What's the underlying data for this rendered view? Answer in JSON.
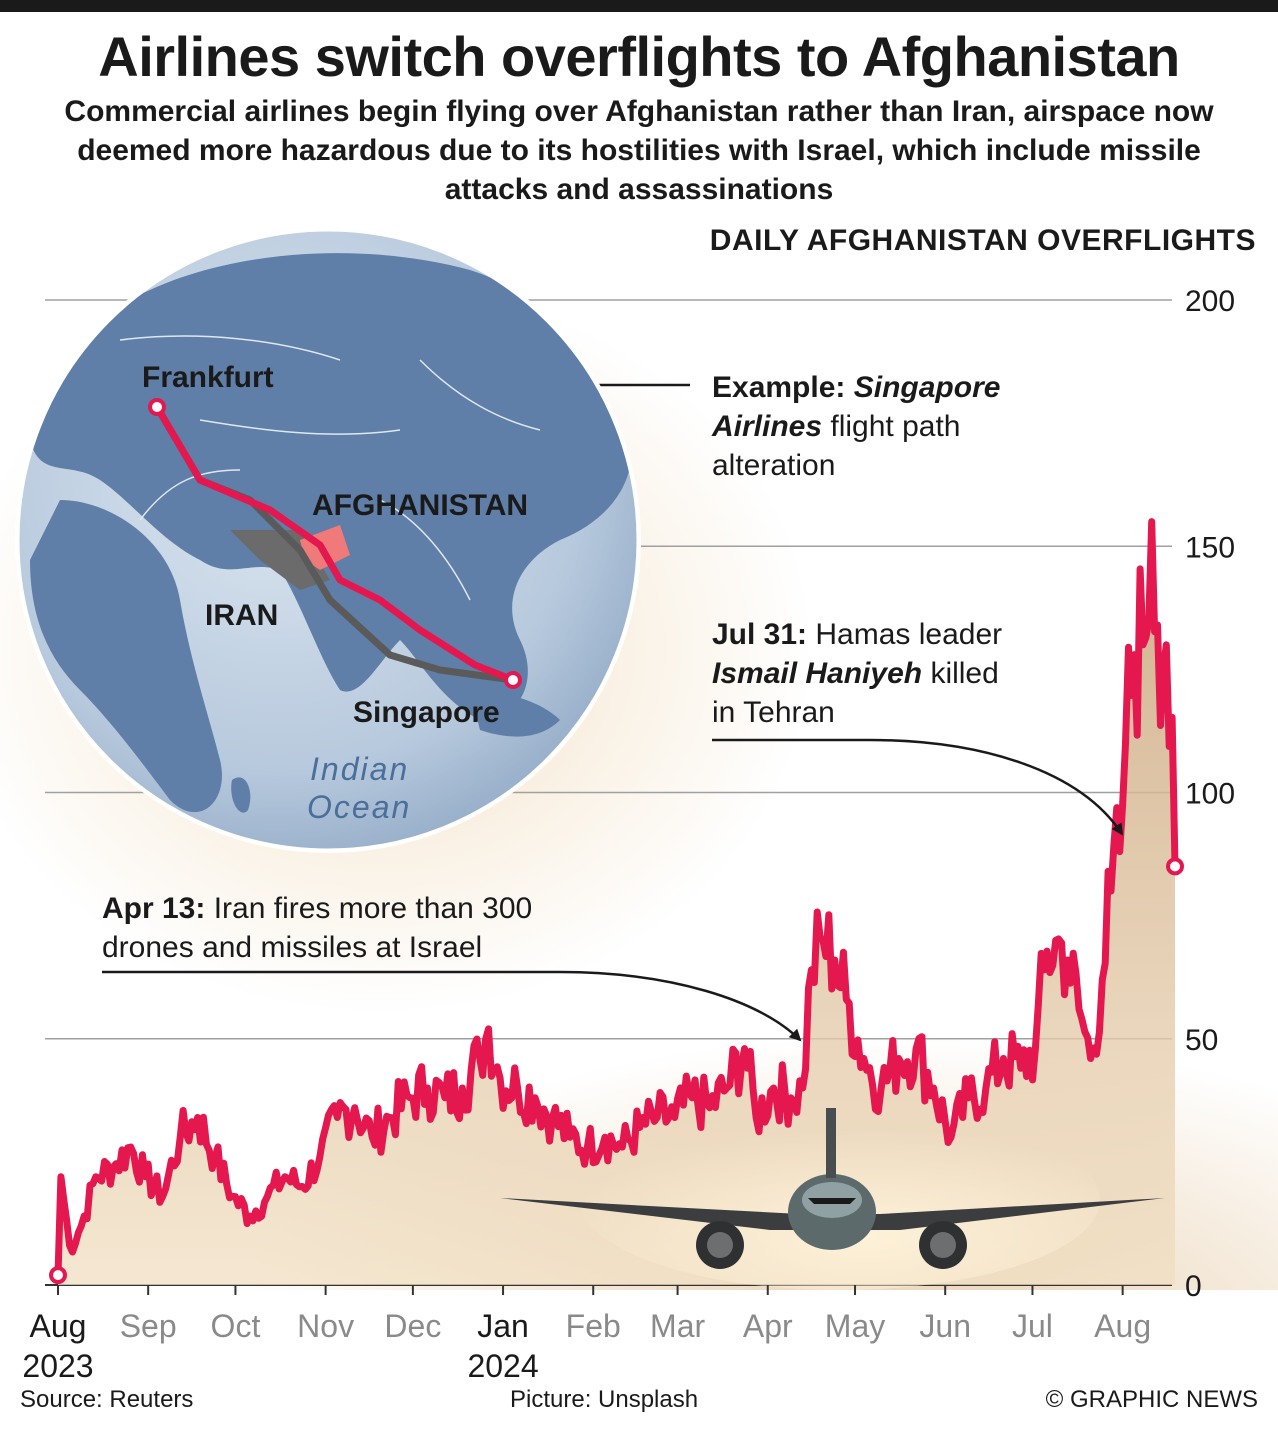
{
  "header": {
    "title": "Airlines switch overflights to Afghanistan",
    "subtitle": "Commercial airlines begin flying over Afghanistan rather than Iran, airspace now deemed more hazardous due to its hostilities with Israel, which include missile attacks and assassinations"
  },
  "map": {
    "city_start": "Frankfurt",
    "city_end": "Singapore",
    "country_new": "AFGHANISTAN",
    "country_old": "IRAN",
    "ocean_line1": "Indian",
    "ocean_line2": "Ocean",
    "colors": {
      "new_route": "#e4174f",
      "old_route": "#5a5a5a",
      "afghanistan": "#f07a7a",
      "iran": "#6b6b6b",
      "ocean": "#b9cbe0",
      "land": "#5f7ea8"
    }
  },
  "annotations": {
    "example_lead": "Example:",
    "example_airline_1": "Singapore",
    "example_airline_2": "Airlines",
    "example_rest_1": "flight path",
    "example_rest_2": "alteration",
    "jul_date": "Jul 31:",
    "jul_text_1": "Hamas leader",
    "jul_name": "Ismail Haniyeh",
    "jul_text_2": "killed",
    "jul_text_3": "in Tehran",
    "apr_date": "Apr 13:",
    "apr_text_1": "Iran fires more than 300",
    "apr_text_2": "drones and missiles at Israel"
  },
  "chart_data": {
    "type": "line",
    "title": "DAILY AFGHANISTAN OVERFLIGHTS",
    "ylim": [
      0,
      200
    ],
    "yticks": [
      "200",
      "150",
      "100",
      "50",
      "0"
    ],
    "xticks": [
      {
        "label": "Aug",
        "year": "2023",
        "highlight": true
      },
      {
        "label": "Sep",
        "year": "",
        "highlight": false
      },
      {
        "label": "Oct",
        "year": "",
        "highlight": false
      },
      {
        "label": "Nov",
        "year": "",
        "highlight": false
      },
      {
        "label": "Dec",
        "year": "",
        "highlight": false
      },
      {
        "label": "Jan",
        "year": "2024",
        "highlight": true
      },
      {
        "label": "Feb",
        "year": "",
        "highlight": false
      },
      {
        "label": "Mar",
        "year": "",
        "highlight": false
      },
      {
        "label": "Apr",
        "year": "",
        "highlight": false
      },
      {
        "label": "May",
        "year": "",
        "highlight": false
      },
      {
        "label": "Jun",
        "year": "",
        "highlight": false
      },
      {
        "label": "Jul",
        "year": "",
        "highlight": false
      },
      {
        "label": "Aug",
        "year": "",
        "highlight": false
      }
    ],
    "x_start": "2023-08-01",
    "x_end": "2024-08-19",
    "series": [
      {
        "color": "#e4174f",
        "anchors": [
          [
            "2023-08-01",
            2
          ],
          [
            "2023-08-02",
            22
          ],
          [
            "2023-08-05",
            8
          ],
          [
            "2023-08-09",
            12
          ],
          [
            "2023-08-14",
            22
          ],
          [
            "2023-08-20",
            24
          ],
          [
            "2023-08-26",
            28
          ],
          [
            "2023-08-31",
            22
          ],
          [
            "2023-09-06",
            18
          ],
          [
            "2023-09-12",
            30
          ],
          [
            "2023-09-18",
            34
          ],
          [
            "2023-09-24",
            26
          ],
          [
            "2023-09-30",
            18
          ],
          [
            "2023-10-06",
            14
          ],
          [
            "2023-10-12",
            18
          ],
          [
            "2023-10-18",
            22
          ],
          [
            "2023-10-24",
            20
          ],
          [
            "2023-10-30",
            26
          ],
          [
            "2023-11-05",
            34
          ],
          [
            "2023-11-11",
            36
          ],
          [
            "2023-11-17",
            30
          ],
          [
            "2023-11-23",
            34
          ],
          [
            "2023-11-30",
            38
          ],
          [
            "2023-12-06",
            40
          ],
          [
            "2023-12-12",
            38
          ],
          [
            "2023-12-18",
            40
          ],
          [
            "2023-12-24",
            46
          ],
          [
            "2023-12-27",
            52
          ],
          [
            "2023-12-31",
            42
          ],
          [
            "2024-01-06",
            40
          ],
          [
            "2024-01-12",
            38
          ],
          [
            "2024-01-18",
            34
          ],
          [
            "2024-01-24",
            30
          ],
          [
            "2024-01-30",
            28
          ],
          [
            "2024-02-05",
            30
          ],
          [
            "2024-02-11",
            28
          ],
          [
            "2024-02-17",
            32
          ],
          [
            "2024-02-23",
            34
          ],
          [
            "2024-02-29",
            34
          ],
          [
            "2024-03-06",
            38
          ],
          [
            "2024-03-12",
            36
          ],
          [
            "2024-03-18",
            40
          ],
          [
            "2024-03-24",
            48
          ],
          [
            "2024-03-28",
            34
          ],
          [
            "2024-04-03",
            40
          ],
          [
            "2024-04-09",
            38
          ],
          [
            "2024-04-13",
            40
          ],
          [
            "2024-04-16",
            64
          ],
          [
            "2024-04-20",
            70
          ],
          [
            "2024-04-24",
            66
          ],
          [
            "2024-04-28",
            58
          ],
          [
            "2024-05-04",
            46
          ],
          [
            "2024-05-10",
            40
          ],
          [
            "2024-05-16",
            46
          ],
          [
            "2024-05-22",
            48
          ],
          [
            "2024-05-28",
            40
          ],
          [
            "2024-06-03",
            30
          ],
          [
            "2024-06-09",
            38
          ],
          [
            "2024-06-15",
            40
          ],
          [
            "2024-06-21",
            46
          ],
          [
            "2024-06-27",
            44
          ],
          [
            "2024-07-02",
            48
          ],
          [
            "2024-07-05",
            64
          ],
          [
            "2024-07-09",
            70
          ],
          [
            "2024-07-13",
            66
          ],
          [
            "2024-07-17",
            56
          ],
          [
            "2024-07-21",
            46
          ],
          [
            "2024-07-25",
            62
          ],
          [
            "2024-07-28",
            80
          ],
          [
            "2024-07-31",
            88
          ],
          [
            "2024-08-02",
            110
          ],
          [
            "2024-08-05",
            128
          ],
          [
            "2024-08-08",
            130
          ],
          [
            "2024-08-11",
            155
          ],
          [
            "2024-08-13",
            134
          ],
          [
            "2024-08-16",
            130
          ],
          [
            "2024-08-19",
            85
          ]
        ]
      }
    ]
  },
  "footer": {
    "source": "Source: Reuters",
    "picture": "Picture: Unsplash",
    "credit": "© GRAPHIC NEWS"
  }
}
